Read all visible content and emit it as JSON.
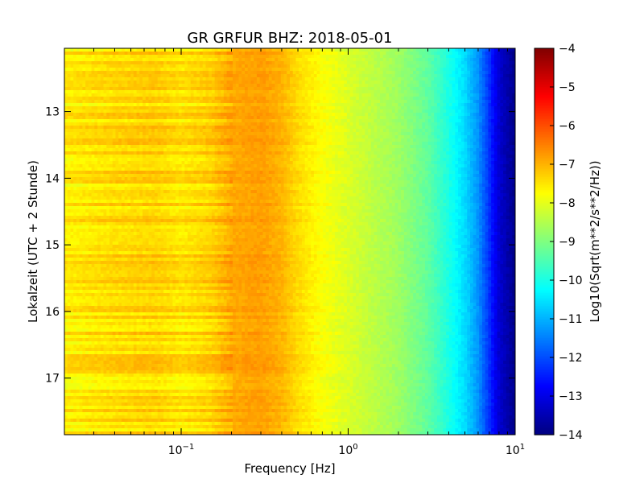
{
  "chart_data": {
    "type": "heatmap",
    "title": "GR GRFUR BHZ: 2018-05-01",
    "xlabel": "Frequency [Hz]",
    "ylabel": "Lokalzeit (UTC + 2 Stunde)",
    "xscale": "log",
    "xlim": [
      0.02,
      10
    ],
    "ylim": [
      12.05,
      17.85
    ],
    "x_ticks": [
      {
        "value": 0.1,
        "base": "10",
        "exp": "−1"
      },
      {
        "value": 1,
        "base": "10",
        "exp": "0"
      },
      {
        "value": 10,
        "base": "10",
        "exp": "1"
      }
    ],
    "y_ticks": [
      {
        "value": 13,
        "label": "13"
      },
      {
        "value": 14,
        "label": "14"
      },
      {
        "value": 15,
        "label": "15"
      },
      {
        "value": 16,
        "label": "16"
      },
      {
        "value": 17,
        "label": "17"
      }
    ],
    "colormap": "jet",
    "colorbar": {
      "label": "Log10(Sqrt(m**2/s**2/Hz))",
      "range": [
        -14,
        -4
      ],
      "ticks": [
        "−4",
        "−5",
        "−6",
        "−7",
        "−8",
        "−9",
        "−10",
        "−11",
        "−12",
        "−13",
        "−14"
      ]
    },
    "spectrum_profile": [
      {
        "f": 0.02,
        "v": -7.6
      },
      {
        "f": 0.04,
        "v": -7.4
      },
      {
        "f": 0.07,
        "v": -7.3
      },
      {
        "f": 0.1,
        "v": -7.5
      },
      {
        "f": 0.15,
        "v": -7.3
      },
      {
        "f": 0.2,
        "v": -6.9
      },
      {
        "f": 0.3,
        "v": -6.8
      },
      {
        "f": 0.4,
        "v": -7.0
      },
      {
        "f": 0.5,
        "v": -7.4
      },
      {
        "f": 0.7,
        "v": -7.8
      },
      {
        "f": 1.0,
        "v": -8.1
      },
      {
        "f": 2.0,
        "v": -8.7
      },
      {
        "f": 3.0,
        "v": -9.3
      },
      {
        "f": 4.0,
        "v": -10.0
      },
      {
        "f": 5.0,
        "v": -10.6
      },
      {
        "f": 6.0,
        "v": -11.3
      },
      {
        "f": 7.0,
        "v": -12.3
      },
      {
        "f": 8.0,
        "v": -13.2
      },
      {
        "f": 10.0,
        "v": -13.9
      }
    ]
  }
}
